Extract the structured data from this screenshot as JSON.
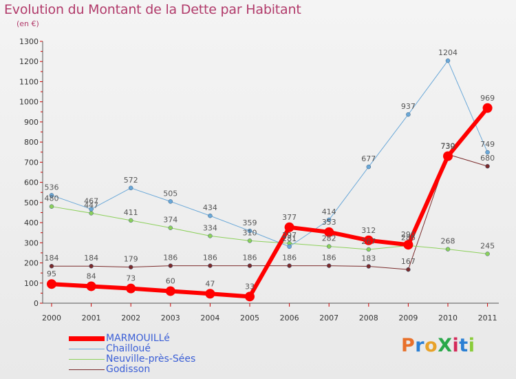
{
  "title": "Evolution du Montant de la Dette par Habitant",
  "subtitle": "(en €)",
  "logo": {
    "text": "ProXiti",
    "colors": [
      "#e8702a",
      "#2a7fd4",
      "#e8a22a",
      "#2aa84a",
      "#d42a5a",
      "#2a7fd4",
      "#8acc3a"
    ]
  },
  "chart_data": {
    "type": "line",
    "title": "Evolution du Montant de la Dette par Habitant",
    "ylabel": "(en €)",
    "x": [
      "2000",
      "2001",
      "2002",
      "2003",
      "2004",
      "2005",
      "2006",
      "2007",
      "2008",
      "2009",
      "2010",
      "2011"
    ],
    "ylim": [
      0,
      1300
    ],
    "yticks": [
      0,
      100,
      200,
      300,
      400,
      500,
      600,
      700,
      800,
      900,
      1000,
      1100,
      1200,
      1300
    ],
    "grid": false,
    "legend_position": "bottom-left",
    "series": [
      {
        "name": "MARMOUILLé",
        "color": "#ff0000",
        "width": 6,
        "marker": 7,
        "values": [
          95,
          84,
          73,
          60,
          47,
          33,
          377,
          353,
          312,
          290,
          730,
          969
        ]
      },
      {
        "name": "Chailloué",
        "color": "#6aa8d8",
        "width": 1,
        "marker": 3,
        "values": [
          536,
          467,
          572,
          505,
          434,
          359,
          281,
          414,
          677,
          937,
          1204,
          749
        ]
      },
      {
        "name": "Neuville-près-Sées",
        "color": "#8cd05a",
        "width": 1,
        "marker": 3,
        "values": [
          480,
          447,
          411,
          374,
          334,
          310,
          297,
          282,
          267,
          286,
          268,
          245
        ]
      },
      {
        "name": "Godisson",
        "color": "#7a2a2a",
        "width": 1,
        "marker": 3,
        "values": [
          184,
          184,
          179,
          186,
          186,
          186,
          186,
          186,
          183,
          167,
          739,
          680
        ]
      }
    ]
  }
}
